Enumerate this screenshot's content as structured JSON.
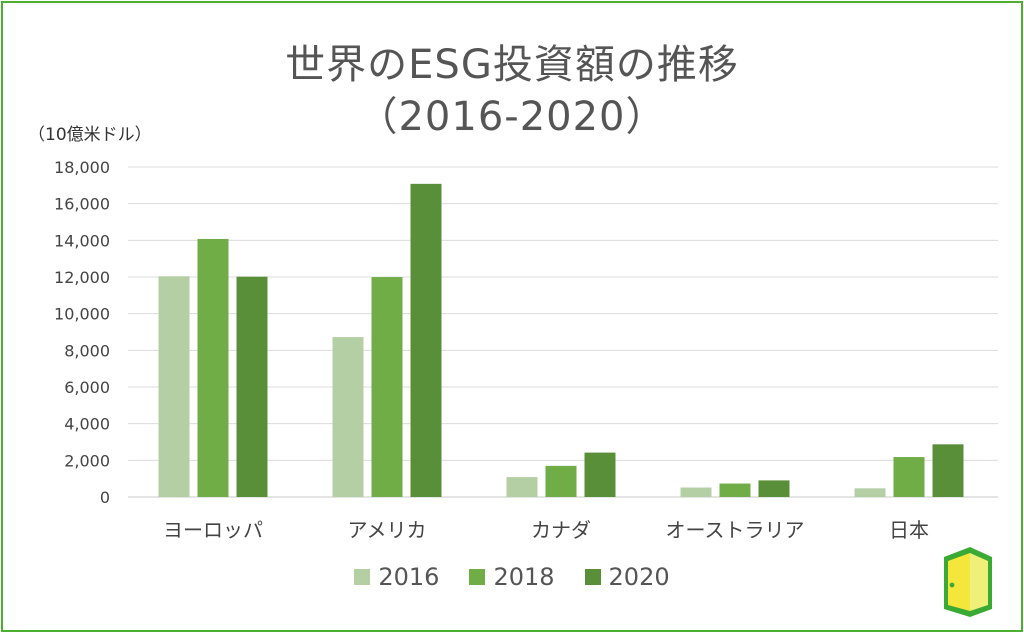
{
  "chart_data": {
    "type": "bar",
    "title": "世界のESG投資額の推移",
    "subtitle": "（2016-2020）",
    "ylabel": "（10億米ドル）",
    "xlabel": "",
    "ylim": [
      0,
      18000
    ],
    "yticks": [
      0,
      2000,
      4000,
      6000,
      8000,
      10000,
      12000,
      14000,
      16000,
      18000
    ],
    "ytick_labels": [
      "0",
      "2,000",
      "4,000",
      "6,000",
      "8,000",
      "10,000",
      "12,000",
      "14,000",
      "16,000",
      "18,000"
    ],
    "grid": true,
    "legend_position": "bottom",
    "categories": [
      "ヨーロッパ",
      "アメリカ",
      "カナダ",
      "オーストラリア",
      "日本"
    ],
    "series": [
      {
        "name": "2016",
        "color": "#b5cfa5",
        "values": [
          12040,
          8723,
          1086,
          516,
          474
        ]
      },
      {
        "name": "2018",
        "color": "#70ad47",
        "values": [
          14075,
          11995,
          1699,
          734,
          2180
        ]
      },
      {
        "name": "2020",
        "color": "#5a8f3a",
        "values": [
          12017,
          17081,
          2423,
          906,
          2874
        ]
      }
    ]
  },
  "logo": {
    "icon": "door-icon",
    "colors": [
      "#3aaa35",
      "#f5e63c"
    ]
  }
}
